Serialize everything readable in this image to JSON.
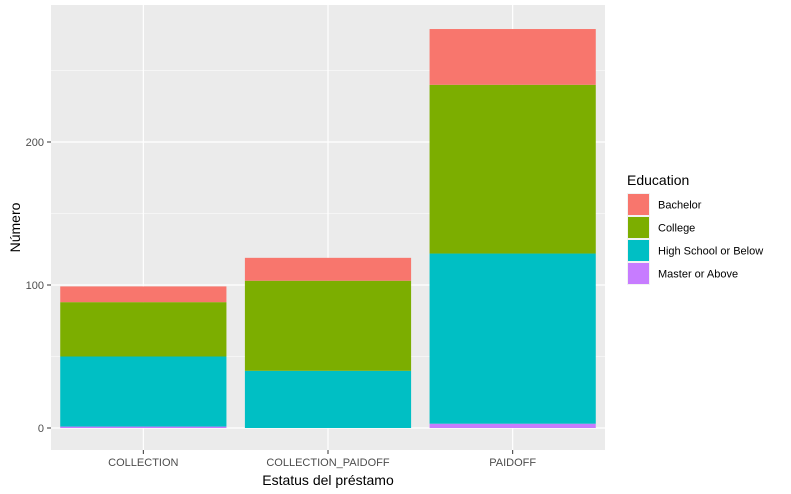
{
  "chart_data": {
    "type": "bar",
    "stacked": true,
    "xlabel": "Estatus del préstamo",
    "ylabel": "Número",
    "categories": [
      "COLLECTION",
      "COLLECTION_PAIDOFF",
      "PAIDOFF"
    ],
    "ylim": [
      0,
      290
    ],
    "yticks": [
      0,
      100,
      200
    ],
    "grid": true,
    "legend": {
      "title": "Education",
      "placement": "right"
    },
    "series": [
      {
        "name": "Bachelor",
        "color": "#F8766D",
        "values": [
          11,
          16,
          39
        ]
      },
      {
        "name": "College",
        "color": "#7CAE00",
        "values": [
          38,
          63,
          118
        ]
      },
      {
        "name": "High School or Below",
        "color": "#00BFC4",
        "values": [
          49,
          40,
          119
        ]
      },
      {
        "name": "Master or Above",
        "color": "#C77CFF",
        "values": [
          1,
          0,
          3
        ]
      }
    ]
  }
}
